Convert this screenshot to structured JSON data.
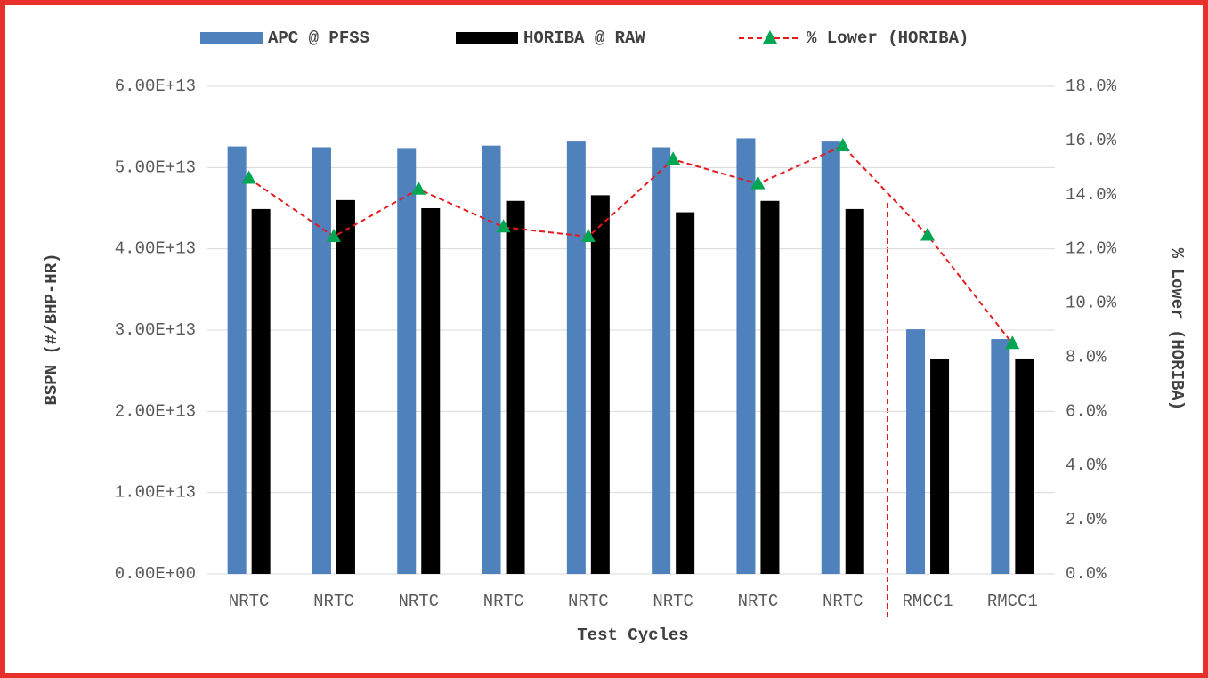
{
  "chart_data": {
    "type": "bar",
    "xlabel": "Test Cycles",
    "ylabel": "BSPN (#/BHP-HR)",
    "y2label": "% Lower (HORIBA)",
    "categories": [
      "NRTC",
      "NRTC",
      "NRTC",
      "NRTC",
      "NRTC",
      "NRTC",
      "NRTC",
      "NRTC",
      "RMCC1",
      "RMCC1"
    ],
    "series": [
      {
        "name": "APC @ PFSS",
        "type": "bar",
        "color": "#4f81bd",
        "values": [
          52600000000000.0,
          52500000000000.0,
          52400000000000.0,
          52700000000000.0,
          53200000000000.0,
          52500000000000.0,
          53600000000000.0,
          53200000000000.0,
          30100000000000.0,
          28900000000000.0
        ]
      },
      {
        "name": "HORIBA @ RAW",
        "type": "bar",
        "color": "#000000",
        "values": [
          44900000000000.0,
          46000000000000.0,
          45000000000000.0,
          45900000000000.0,
          46600000000000.0,
          44500000000000.0,
          45900000000000.0,
          44900000000000.0,
          26400000000000.0,
          26500000000000.0
        ]
      },
      {
        "name": "% Lower (HORIBA)",
        "type": "line",
        "axis": "y2",
        "color": "#e41a1c",
        "marker_color": "#00a651",
        "values": [
          14.6,
          12.45,
          14.2,
          12.8,
          12.45,
          15.3,
          14.4,
          15.8,
          12.5,
          8.5
        ]
      }
    ],
    "ylim": [
      0,
      60000000000000.0
    ],
    "yticks": [
      {
        "value": 0,
        "label": "0.00E+00"
      },
      {
        "value": 10000000000000.0,
        "label": "1.00E+13"
      },
      {
        "value": 20000000000000.0,
        "label": "2.00E+13"
      },
      {
        "value": 30000000000000.0,
        "label": "3.00E+13"
      },
      {
        "value": 40000000000000.0,
        "label": "4.00E+13"
      },
      {
        "value": 50000000000000.0,
        "label": "5.00E+13"
      },
      {
        "value": 60000000000000.0,
        "label": "6.00E+13"
      }
    ],
    "y2lim": [
      0,
      18
    ],
    "y2ticks": [
      {
        "value": 0,
        "label": "0.0%"
      },
      {
        "value": 2,
        "label": "2.0%"
      },
      {
        "value": 4,
        "label": "4.0%"
      },
      {
        "value": 6,
        "label": "6.0%"
      },
      {
        "value": 8,
        "label": "8.0%"
      },
      {
        "value": 10,
        "label": "10.0%"
      },
      {
        "value": 12,
        "label": "12.0%"
      },
      {
        "value": 14,
        "label": "14.0%"
      },
      {
        "value": 16,
        "label": "16.0%"
      },
      {
        "value": 18,
        "label": "18.0%"
      }
    ],
    "grid": true,
    "legend": "top"
  }
}
